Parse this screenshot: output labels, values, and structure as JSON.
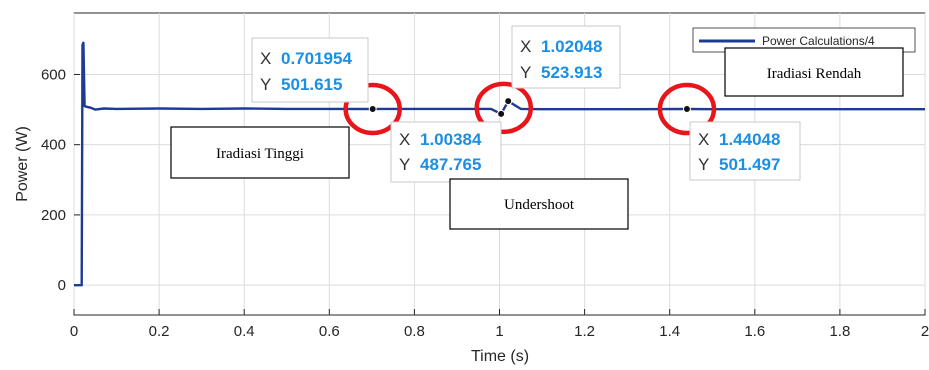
{
  "chart_data": {
    "type": "line",
    "title": "",
    "xlabel": "Time (s)",
    "ylabel": "Power (W)",
    "xlim": [
      0,
      2
    ],
    "ylim": [
      -85,
      775
    ],
    "xticks": [
      0,
      0.2,
      0.4,
      0.6,
      0.8,
      1,
      1.2,
      1.4,
      1.6,
      1.8,
      2
    ],
    "xtick_labels": [
      "0",
      "0.2",
      "0.4",
      "0.6",
      "0.8",
      "1",
      "1.2",
      "1.4",
      "1.6",
      "1.8",
      "2"
    ],
    "yticks": [
      0,
      200,
      400,
      600
    ],
    "ytick_labels": [
      "0",
      "200",
      "400",
      "600"
    ],
    "grid": true,
    "legend_position": "top-right",
    "series": [
      {
        "name": "Power Calculations/4",
        "color": "#1f3a93",
        "x": [
          0,
          0.018,
          0.02,
          0.022,
          0.025,
          0.03,
          0.04,
          0.05,
          0.07,
          0.1,
          0.2,
          0.3,
          0.4,
          0.5,
          0.6,
          0.701954,
          0.8,
          0.9,
          0.98,
          1.00384,
          1.02048,
          1.05,
          1.1,
          1.2,
          1.3,
          1.44048,
          1.5,
          1.6,
          1.7,
          1.8,
          1.9,
          2.0
        ],
        "y": [
          0,
          0,
          685,
          690,
          510,
          508,
          505,
          500,
          503,
          502,
          503,
          502,
          503,
          502,
          502,
          501.615,
          502,
          502,
          502,
          487.765,
          523.913,
          502,
          501,
          501,
          501,
          501.497,
          501,
          501,
          501,
          501,
          501,
          501
        ]
      }
    ],
    "datatips": [
      {
        "x_key": "X",
        "x_value": "0.701954",
        "y_key": "Y",
        "y_value": "501.615",
        "x": 0.701954,
        "y": 501.615
      },
      {
        "x_key": "X",
        "x_value": "1.00384",
        "y_key": "Y",
        "y_value": "487.765",
        "x": 1.00384,
        "y": 487.765
      },
      {
        "x_key": "X",
        "x_value": "1.02048",
        "y_key": "Y",
        "y_value": "523.913",
        "x": 1.02048,
        "y": 523.913
      },
      {
        "x_key": "X",
        "x_value": "1.44048",
        "y_key": "Y",
        "y_value": "501.497",
        "x": 1.44048,
        "y": 501.497
      }
    ],
    "highlight_circles": [
      {
        "x": 0.701954,
        "y": 501.615,
        "color": "#e8151b"
      },
      {
        "x": 1.01,
        "y": 505,
        "color": "#e8151b"
      },
      {
        "x": 1.44048,
        "y": 501.497,
        "color": "#e8151b"
      }
    ],
    "annotations": [
      {
        "text": "Iradiasi Tinggi"
      },
      {
        "text": "Undershoot"
      },
      {
        "text": "Iradiasi Rendah"
      }
    ]
  }
}
